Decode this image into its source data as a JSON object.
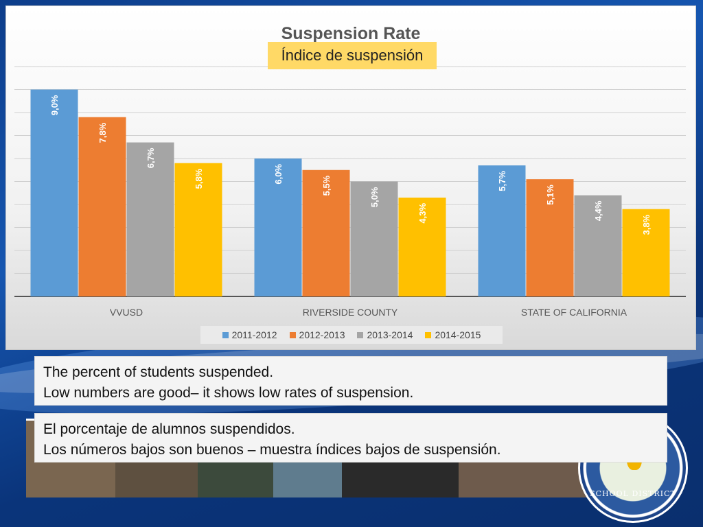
{
  "chart_data": {
    "type": "bar",
    "title": "Suspension Rate",
    "subtitle": "Índice de suspensión",
    "categories": [
      "VVUSD",
      "RIVERSIDE COUNTY",
      "STATE OF CALIFORNIA"
    ],
    "series": [
      {
        "name": "2011-2012",
        "color": "#5b9bd5",
        "values": [
          9.0,
          6.0,
          5.7
        ],
        "labels": [
          "9,0%",
          "6,0%",
          "5,7%"
        ]
      },
      {
        "name": "2012-2013",
        "color": "#ed7d31",
        "values": [
          7.8,
          5.5,
          5.1
        ],
        "labels": [
          "7,8%",
          "5,5%",
          "5,1%"
        ]
      },
      {
        "name": "2013-2014",
        "color": "#a5a5a5",
        "values": [
          6.7,
          5.0,
          4.4
        ],
        "labels": [
          "6,7%",
          "5,0%",
          "4,4%"
        ]
      },
      {
        "name": "2014-2015",
        "color": "#ffc000",
        "values": [
          5.8,
          4.3,
          3.8
        ],
        "labels": [
          "5,8%",
          "4,3%",
          "3,8%"
        ]
      }
    ],
    "ylim": [
      0,
      10
    ],
    "grid": true,
    "legend": "bottom"
  },
  "notes": {
    "english": {
      "line1": "The percent of students suspended.",
      "line2": "Low numbers are good– it shows low rates of suspension."
    },
    "spanish": {
      "line1": "El porcentaje de alumnos suspendidos.",
      "line2": "Los números bajos son buenos  – muestra índices bajos de suspensión."
    }
  },
  "seal": {
    "text": "SCHOOL DISTRICT"
  }
}
